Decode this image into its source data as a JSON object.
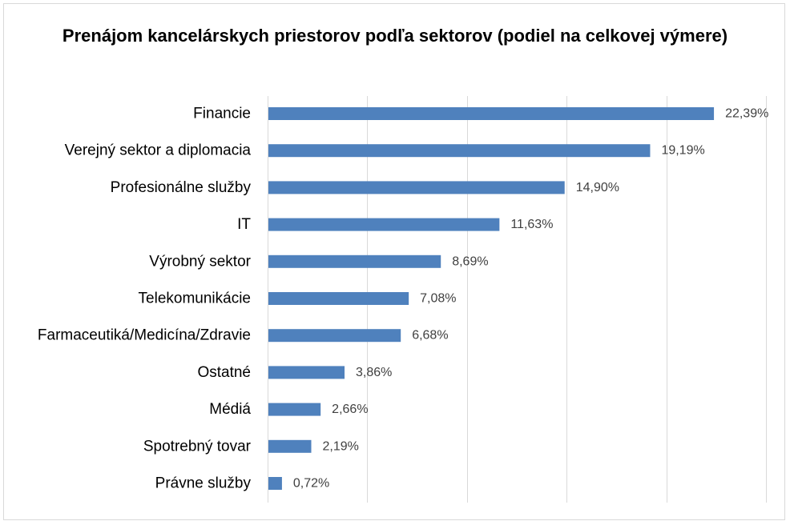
{
  "chart_data": {
    "type": "bar",
    "orientation": "horizontal",
    "title": "Prenájom kancelárskych priestorov podľa sektorov (podiel na celkovej výmere)",
    "categories": [
      "Financie",
      "Verejný sektor a diplomacia",
      "Profesionálne služby",
      "IT",
      "Výrobný sektor",
      "Telekomunikácie",
      "Farmaceutiká/Medicína/Zdravie",
      "Ostatné",
      "Médiá",
      "Spotrebný tovar",
      "Právne služby"
    ],
    "values": [
      22.39,
      19.19,
      14.9,
      11.63,
      8.69,
      7.08,
      6.68,
      3.86,
      2.66,
      2.19,
      0.72
    ],
    "value_labels": [
      "22,39%",
      "19,19%",
      "14,90%",
      "11,63%",
      "8,69%",
      "7,08%",
      "6,68%",
      "3,86%",
      "2,66%",
      "2,19%",
      "0,72%"
    ],
    "xlim": [
      0,
      25
    ],
    "x_gridline_step": 5,
    "x_tick_labels_shown": false,
    "grid": true,
    "legend": "none",
    "bar_color": "#4f81bd",
    "gridline_color": "#d9d9d9"
  }
}
